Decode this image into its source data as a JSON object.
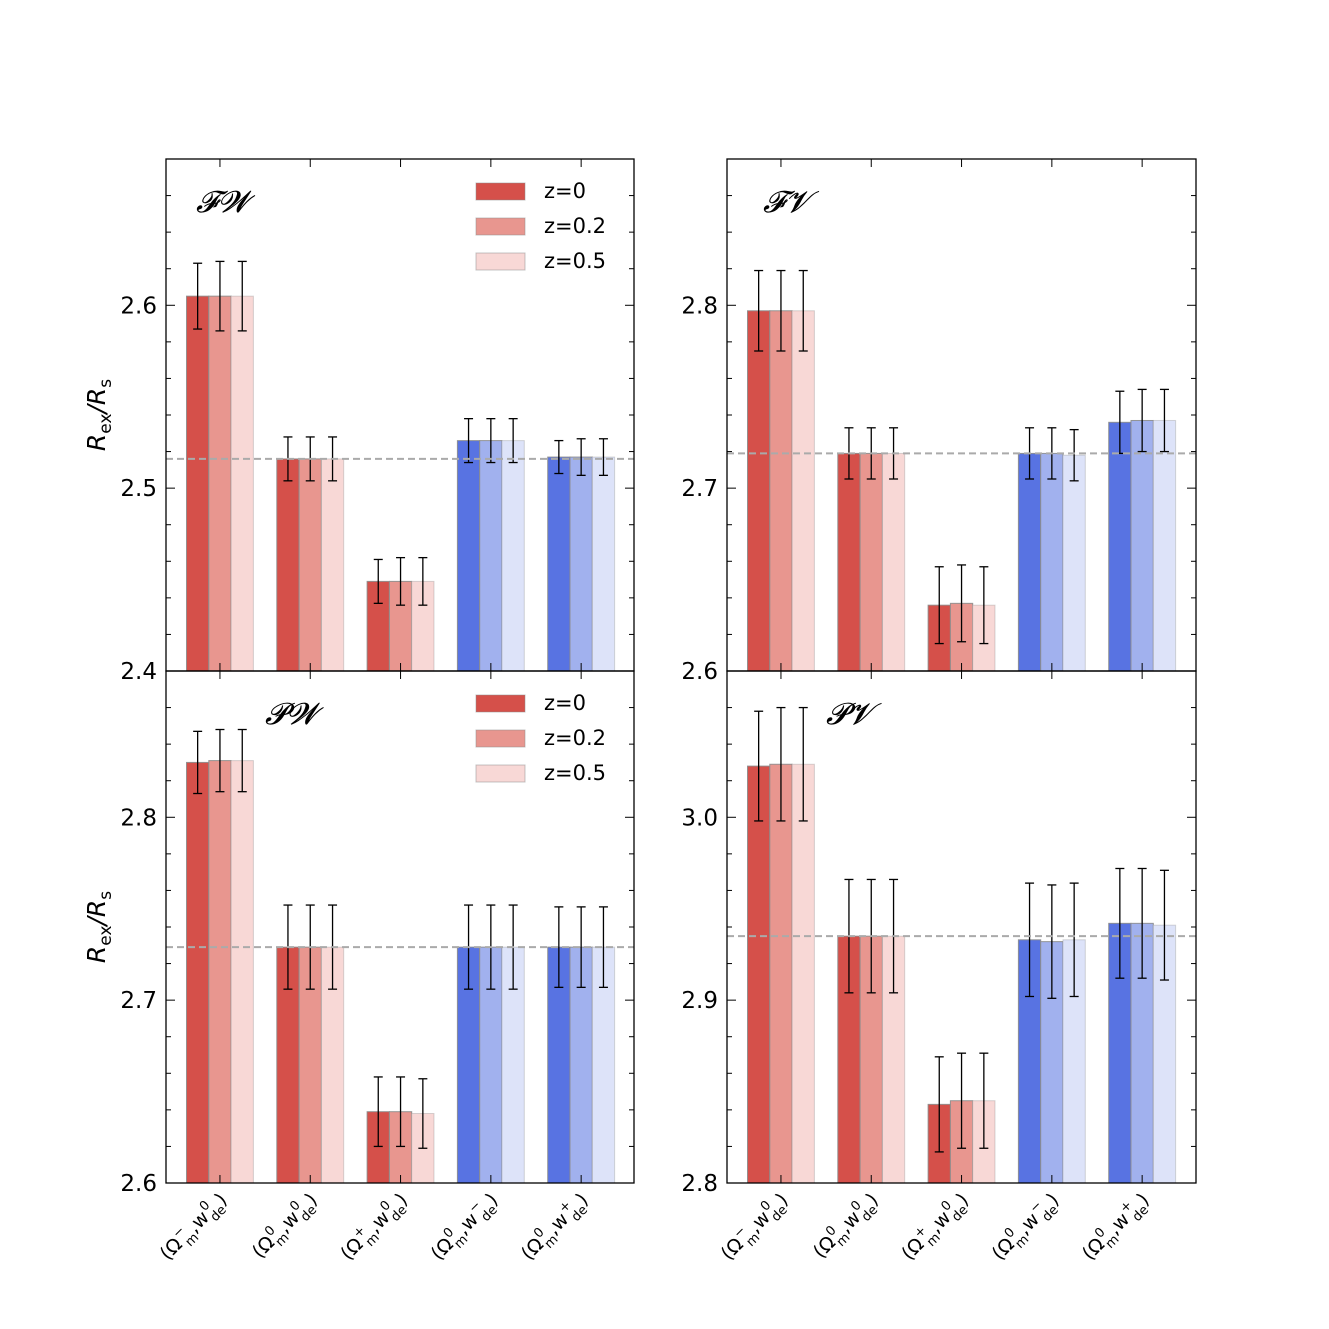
{
  "chart_data": {
    "type": "bar",
    "categories": [
      {
        "base": "Ω",
        "base_sub": "m",
        "base_sup": "−",
        "w": "w",
        "w_sub": "de",
        "w_sup": "0"
      },
      {
        "base": "Ω",
        "base_sub": "m",
        "base_sup": "0",
        "w": "w",
        "w_sub": "de",
        "w_sup": "0"
      },
      {
        "base": "Ω",
        "base_sub": "m",
        "base_sup": "+",
        "w": "w",
        "w_sub": "de",
        "w_sup": "0"
      },
      {
        "base": "Ω",
        "base_sub": "m",
        "base_sup": "0",
        "w": "w",
        "w_sub": "de",
        "w_sup": "−"
      },
      {
        "base": "Ω",
        "base_sub": "m",
        "base_sup": "0",
        "w": "w",
        "w_sub": "de",
        "w_sup": "+"
      }
    ],
    "series_names": [
      "z=0",
      "z=0.2",
      "z=0.5"
    ],
    "colors": {
      "red": [
        "#d5504a",
        "#e8968f",
        "#f8d8d6"
      ],
      "blue": [
        "#5873e2",
        "#a1b1ee",
        "#dde3f9"
      ],
      "category_group": [
        "red",
        "red",
        "red",
        "blue",
        "blue"
      ],
      "reference_line": "#aaaaaa",
      "errorbar": "#000000"
    },
    "ylabel": {
      "main": "R",
      "sub1": "ex",
      "sep": "/",
      "main2": "R",
      "sub2": "s"
    },
    "panels": [
      {
        "id": "FW",
        "title": "𝓕𝓦",
        "legend": true,
        "ylim": [
          2.4,
          2.68
        ],
        "yticks": [
          "2.4",
          "2.5",
          "2.6"
        ],
        "ytick_values": [
          2.4,
          2.5,
          2.6
        ],
        "minor_step": 0.02,
        "reference": 2.516,
        "values": [
          [
            2.605,
            2.605,
            2.605
          ],
          [
            2.516,
            2.516,
            2.516
          ],
          [
            2.449,
            2.449,
            2.449
          ],
          [
            2.526,
            2.526,
            2.526
          ],
          [
            2.517,
            2.517,
            2.517
          ]
        ],
        "errors": [
          [
            0.018,
            0.019,
            0.019
          ],
          [
            0.012,
            0.012,
            0.012
          ],
          [
            0.012,
            0.013,
            0.013
          ],
          [
            0.012,
            0.012,
            0.012
          ],
          [
            0.009,
            0.01,
            0.01
          ]
        ]
      },
      {
        "id": "FV",
        "title": "𝓕𝓥",
        "legend": false,
        "ylim": [
          2.6,
          2.88
        ],
        "yticks": [
          "2.6",
          "2.7",
          "2.8"
        ],
        "ytick_values": [
          2.6,
          2.7,
          2.8
        ],
        "minor_step": 0.02,
        "reference": 2.719,
        "values": [
          [
            2.797,
            2.797,
            2.797
          ],
          [
            2.719,
            2.719,
            2.719
          ],
          [
            2.636,
            2.637,
            2.636
          ],
          [
            2.719,
            2.719,
            2.718
          ],
          [
            2.736,
            2.737,
            2.737
          ]
        ],
        "errors": [
          [
            0.022,
            0.022,
            0.022
          ],
          [
            0.014,
            0.014,
            0.014
          ],
          [
            0.021,
            0.021,
            0.021
          ],
          [
            0.014,
            0.014,
            0.014
          ],
          [
            0.017,
            0.017,
            0.017
          ]
        ]
      },
      {
        "id": "PW",
        "title": "𝓟𝓦",
        "legend": true,
        "ylim": [
          2.6,
          2.88
        ],
        "yticks": [
          "2.6",
          "2.7",
          "2.8"
        ],
        "ytick_values": [
          2.6,
          2.7,
          2.8
        ],
        "minor_step": 0.02,
        "reference": 2.729,
        "values": [
          [
            2.83,
            2.831,
            2.831
          ],
          [
            2.729,
            2.729,
            2.729
          ],
          [
            2.639,
            2.639,
            2.638
          ],
          [
            2.729,
            2.729,
            2.729
          ],
          [
            2.729,
            2.729,
            2.729
          ]
        ],
        "errors": [
          [
            0.017,
            0.017,
            0.017
          ],
          [
            0.023,
            0.023,
            0.023
          ],
          [
            0.019,
            0.019,
            0.019
          ],
          [
            0.023,
            0.023,
            0.023
          ],
          [
            0.022,
            0.022,
            0.022
          ]
        ]
      },
      {
        "id": "PV",
        "title": "𝓟𝓥",
        "legend": false,
        "ylim": [
          2.8,
          3.08
        ],
        "yticks": [
          "2.8",
          "2.9",
          "3.0"
        ],
        "ytick_values": [
          2.8,
          2.9,
          3.0
        ],
        "minor_step": 0.02,
        "reference": 2.935,
        "values": [
          [
            3.028,
            3.029,
            3.029
          ],
          [
            2.935,
            2.935,
            2.935
          ],
          [
            2.843,
            2.845,
            2.845
          ],
          [
            2.933,
            2.932,
            2.933
          ],
          [
            2.942,
            2.942,
            2.941
          ]
        ],
        "errors": [
          [
            0.03,
            0.031,
            0.031
          ],
          [
            0.031,
            0.031,
            0.031
          ],
          [
            0.026,
            0.026,
            0.026
          ],
          [
            0.031,
            0.031,
            0.031
          ],
          [
            0.03,
            0.03,
            0.03
          ]
        ]
      }
    ]
  }
}
